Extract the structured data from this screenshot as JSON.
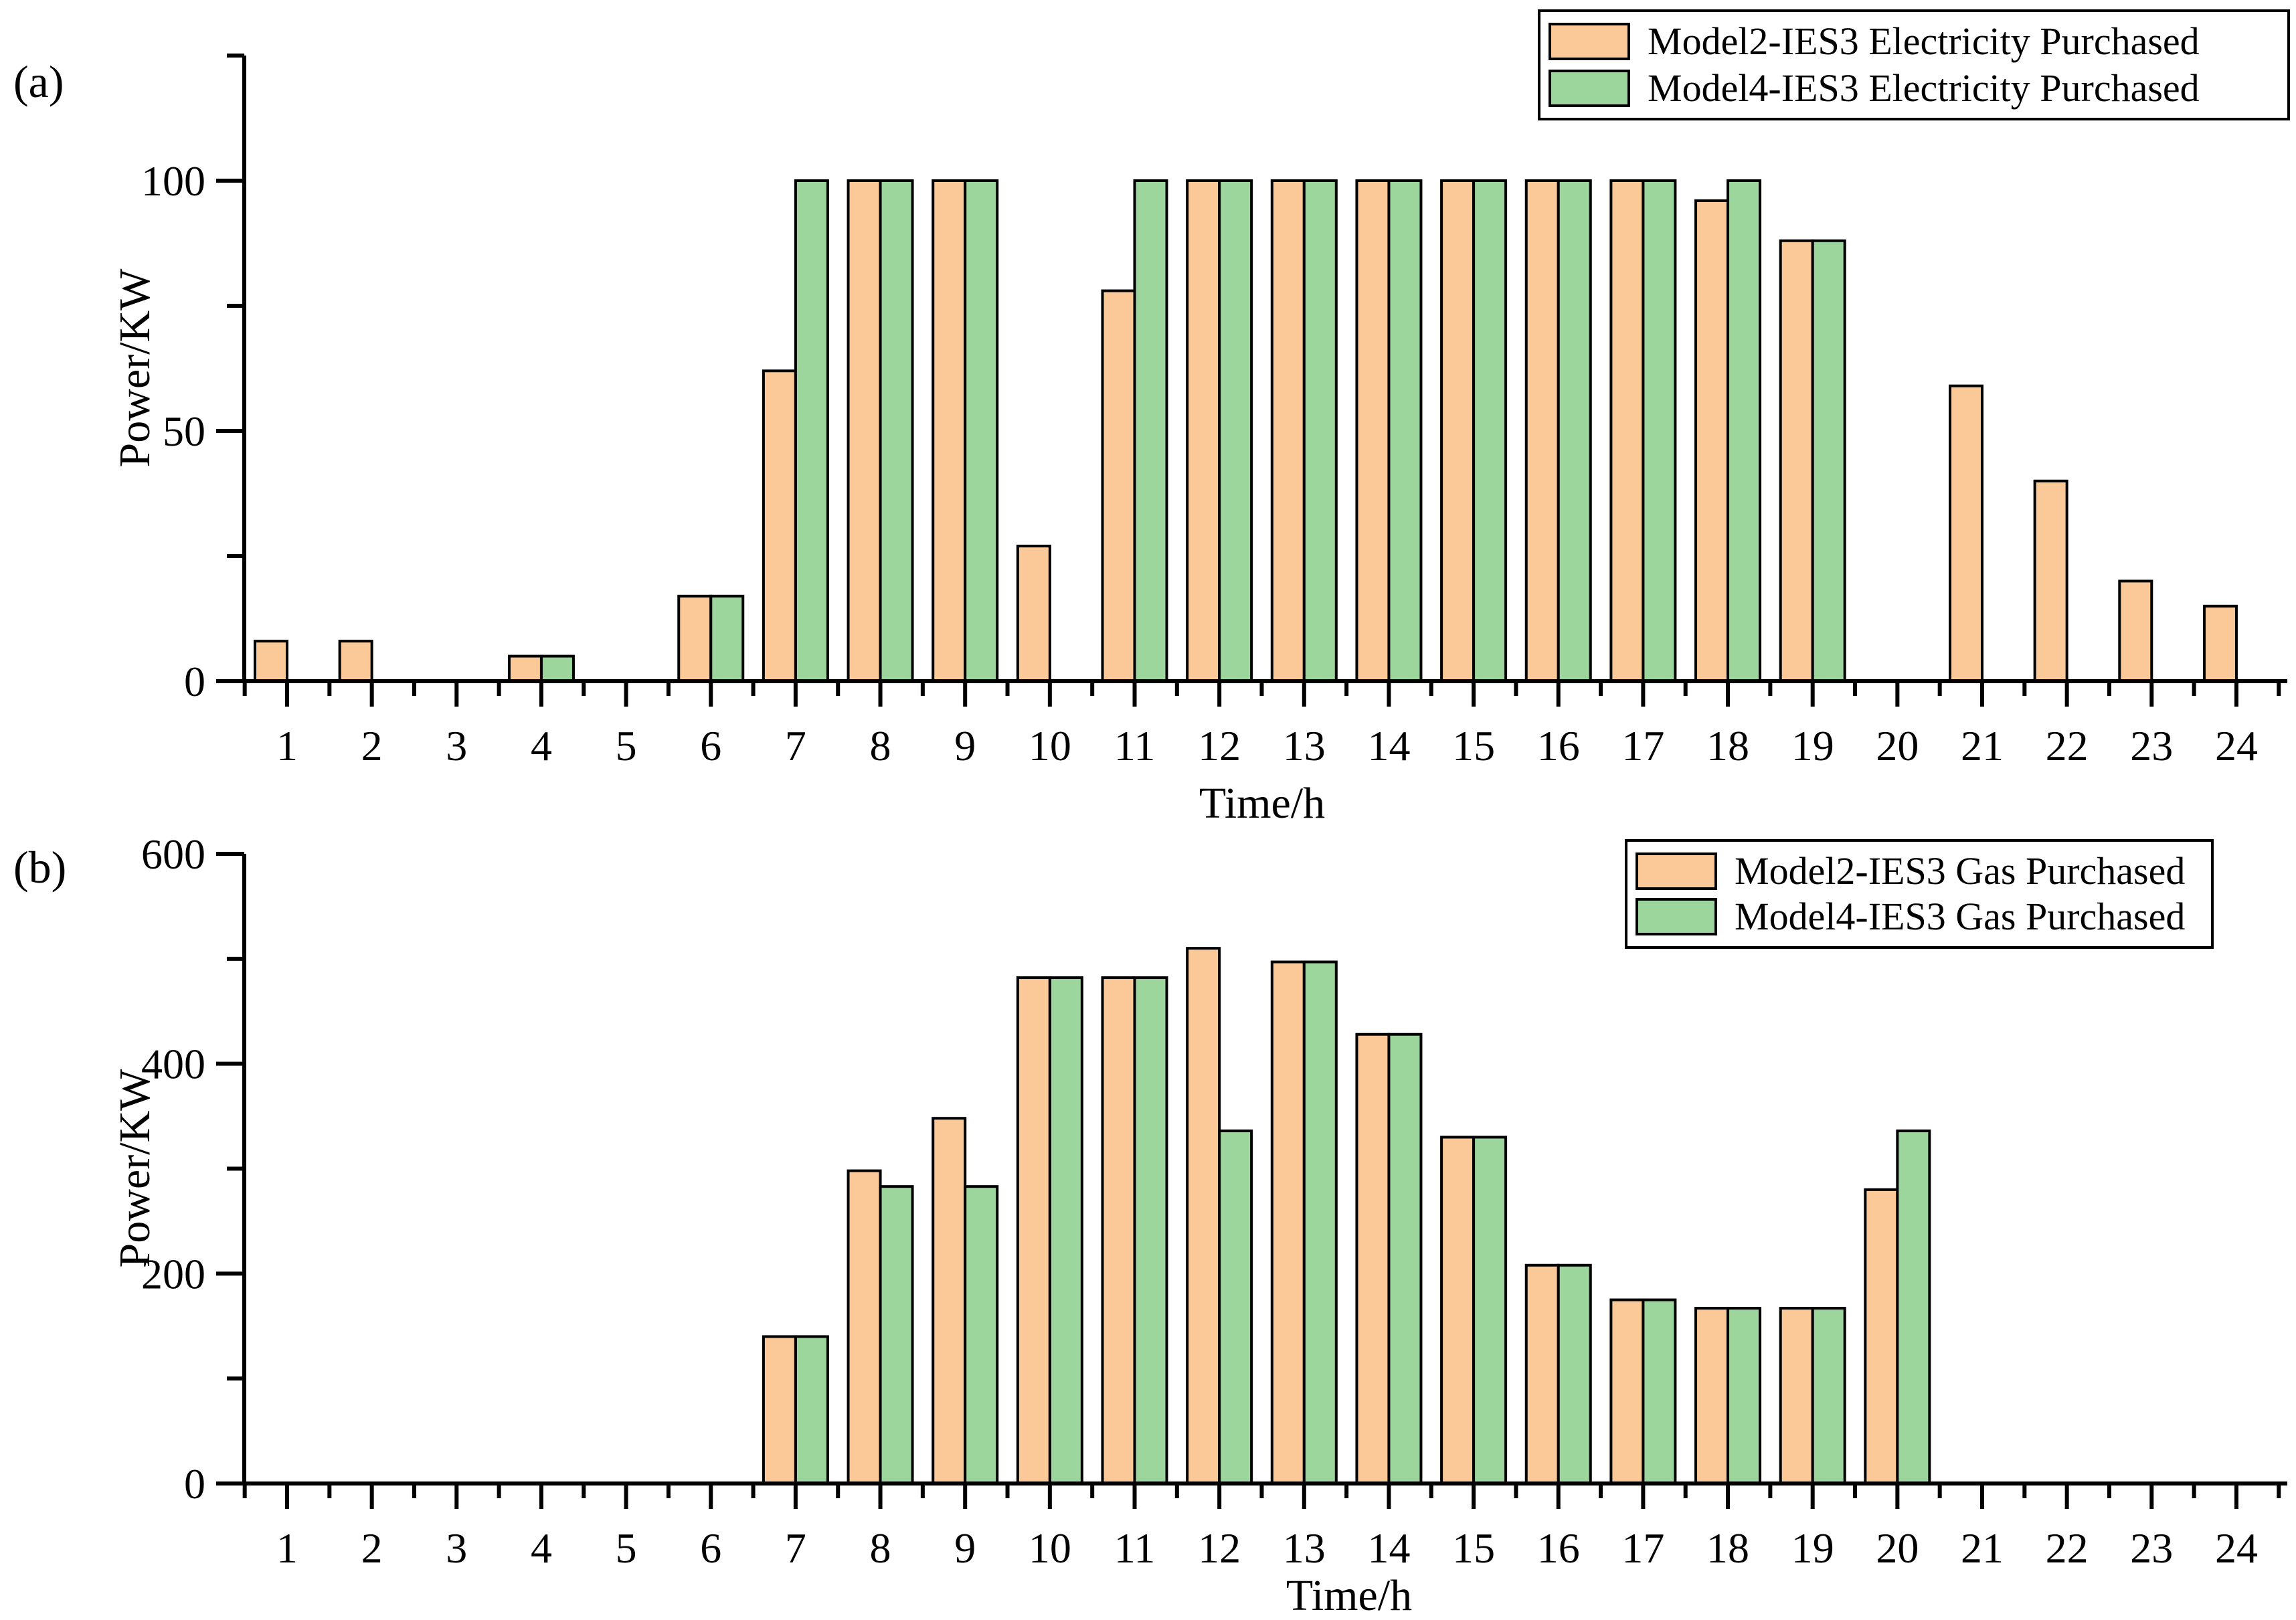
{
  "figure": {
    "background": "#ffffff"
  },
  "colors": {
    "model2_fill": "#FBC997",
    "model4_fill": "#9CD69C",
    "bar_border": "#000000",
    "axis": "#000000",
    "text": "#000000"
  },
  "panels": [
    {
      "tag": "(a)",
      "ylabel": "Power/KW",
      "xlabel": "Time/h",
      "legend": [
        "Model2-IES3 Electricity Purchased",
        "Model4-IES3 Electricity Purchased"
      ]
    },
    {
      "tag": "(b)",
      "ylabel": "Power/KW",
      "xlabel": "Time/h",
      "legend": [
        "Model2-IES3 Gas Purchased",
        "Model4-IES3 Gas Purchased"
      ]
    }
  ],
  "chart_data": [
    {
      "type": "bar",
      "panel": "(a)",
      "title": "",
      "xlabel": "Time/h",
      "ylabel": "Power/KW",
      "categories": [
        1,
        2,
        3,
        4,
        5,
        6,
        7,
        8,
        9,
        10,
        11,
        12,
        13,
        14,
        15,
        16,
        17,
        18,
        19,
        20,
        21,
        22,
        23,
        24
      ],
      "series": [
        {
          "name": "Model2-IES3 Electricity Purchased",
          "color": "model2_fill",
          "values": [
            8,
            8,
            0,
            5,
            0,
            17,
            62,
            100,
            100,
            27,
            78,
            100,
            100,
            100,
            100,
            100,
            100,
            96,
            88,
            0,
            59,
            40,
            20,
            15
          ]
        },
        {
          "name": "Model4-IES3 Electricity Purchased",
          "color": "model4_fill",
          "values": [
            0,
            0,
            0,
            5,
            0,
            17,
            100,
            100,
            100,
            0,
            100,
            100,
            100,
            100,
            100,
            100,
            100,
            100,
            88,
            0,
            0,
            0,
            0,
            0
          ]
        }
      ],
      "ylim": [
        0,
        125
      ],
      "yticks_major": [
        0,
        50,
        100
      ],
      "yticks_minor": [
        25,
        75,
        125
      ],
      "xticks_minor_step": 0.5,
      "grid": false,
      "legend_position": "top-right"
    },
    {
      "type": "bar",
      "panel": "(b)",
      "title": "",
      "xlabel": "Time/h",
      "ylabel": "Power/KW",
      "categories": [
        1,
        2,
        3,
        4,
        5,
        6,
        7,
        8,
        9,
        10,
        11,
        12,
        13,
        14,
        15,
        16,
        17,
        18,
        19,
        20,
        21,
        22,
        23,
        24
      ],
      "series": [
        {
          "name": "Model2-IES3 Gas Purchased",
          "color": "model2_fill",
          "values": [
            0,
            0,
            0,
            0,
            0,
            0,
            140,
            298,
            348,
            482,
            482,
            510,
            497,
            428,
            330,
            208,
            175,
            167,
            167,
            280,
            0,
            0,
            0,
            0
          ]
        },
        {
          "name": "Model4-IES3 Gas Purchased",
          "color": "model4_fill",
          "values": [
            0,
            0,
            0,
            0,
            0,
            0,
            140,
            283,
            283,
            482,
            482,
            336,
            497,
            428,
            330,
            208,
            175,
            167,
            167,
            336,
            0,
            0,
            0,
            0
          ]
        }
      ],
      "ylim": [
        0,
        600
      ],
      "yticks_major": [
        0,
        200,
        400,
        600
      ],
      "yticks_minor": [
        100,
        300,
        500
      ],
      "xticks_minor_step": 0.5,
      "grid": false,
      "legend_position": "top-right"
    }
  ]
}
